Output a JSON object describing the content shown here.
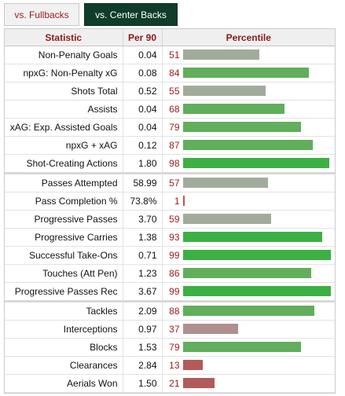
{
  "tabs": [
    {
      "label": "vs. Fullbacks",
      "active": false
    },
    {
      "label": "vs. Center Backs",
      "active": true
    }
  ],
  "headers": {
    "statistic": "Statistic",
    "per90": "Per 90",
    "percentile": "Percentile"
  },
  "colors": {
    "elite": "#3cb043",
    "good": "#61ae5c",
    "average": "#a1ab9b",
    "below": "#b08f8f",
    "poor": "#b35a5a"
  },
  "groups": [
    {
      "rows": [
        {
          "stat": "Non-Penalty Goals",
          "per90": "0.04",
          "percentile": 51
        },
        {
          "stat": "npxG: Non-Penalty xG",
          "per90": "0.08",
          "percentile": 84
        },
        {
          "stat": "Shots Total",
          "per90": "0.52",
          "percentile": 55
        },
        {
          "stat": "Assists",
          "per90": "0.04",
          "percentile": 68
        },
        {
          "stat": "xAG: Exp. Assisted Goals",
          "per90": "0.04",
          "percentile": 79
        },
        {
          "stat": "npxG + xAG",
          "per90": "0.12",
          "percentile": 87
        },
        {
          "stat": "Shot-Creating Actions",
          "per90": "1.80",
          "percentile": 98
        }
      ]
    },
    {
      "rows": [
        {
          "stat": "Passes Attempted",
          "per90": "58.99",
          "percentile": 57
        },
        {
          "stat": "Pass Completion %",
          "per90": "73.8%",
          "percentile": 1
        },
        {
          "stat": "Progressive Passes",
          "per90": "3.70",
          "percentile": 59
        },
        {
          "stat": "Progressive Carries",
          "per90": "1.38",
          "percentile": 93
        },
        {
          "stat": "Successful Take-Ons",
          "per90": "0.71",
          "percentile": 99
        },
        {
          "stat": "Touches (Att Pen)",
          "per90": "1.23",
          "percentile": 86
        },
        {
          "stat": "Progressive Passes Rec",
          "per90": "3.67",
          "percentile": 99
        }
      ]
    },
    {
      "rows": [
        {
          "stat": "Tackles",
          "per90": "2.09",
          "percentile": 88
        },
        {
          "stat": "Interceptions",
          "per90": "0.97",
          "percentile": 37
        },
        {
          "stat": "Blocks",
          "per90": "1.53",
          "percentile": 79
        },
        {
          "stat": "Clearances",
          "per90": "2.84",
          "percentile": 13
        },
        {
          "stat": "Aerials Won",
          "per90": "1.50",
          "percentile": 21
        }
      ]
    }
  ]
}
